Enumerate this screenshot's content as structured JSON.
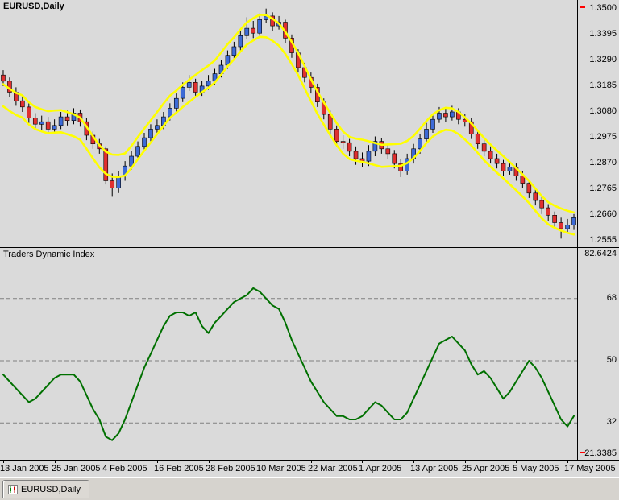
{
  "window": {
    "chart_label": "EURUSD,Daily",
    "indicator_label": "Traders Dynamic Index",
    "tab_label": "EURUSD,Daily"
  },
  "colors": {
    "background": "#d6d3ce",
    "chart_bg": "#dadada",
    "bull": "#3c6ad7",
    "bear": "#e03030",
    "band": "#ffff00",
    "tdi_line": "#007000",
    "level_line": "#808080",
    "marker": "#ff0000",
    "axis_text": "#000000"
  },
  "chart_data": [
    {
      "type": "candlestick",
      "title": "EURUSD,Daily",
      "ylim": [
        1.253,
        1.3535
      ],
      "y_ticks": [
        "1.3500",
        "1.3395",
        "1.3290",
        "1.3185",
        "1.3080",
        "1.2975",
        "1.2870",
        "1.2765",
        "1.2660",
        "1.2555"
      ],
      "x_ticks": [
        {
          "label": "13 Jan 2005",
          "bar": 0
        },
        {
          "label": "25 Jan 2005",
          "bar": 8
        },
        {
          "label": "4 Feb 2005",
          "bar": 16
        },
        {
          "label": "16 Feb 2005",
          "bar": 24
        },
        {
          "label": "28 Feb 2005",
          "bar": 32
        },
        {
          "label": "10 Mar 2005",
          "bar": 40
        },
        {
          "label": "22 Mar 2005",
          "bar": 48
        },
        {
          "label": "1 Apr 2005",
          "bar": 56
        },
        {
          "label": "13 Apr 2005",
          "bar": 64
        },
        {
          "label": "25 Apr 2005",
          "bar": 72
        },
        {
          "label": "5 May 2005",
          "bar": 80
        },
        {
          "label": "17 May 2005",
          "bar": 88
        }
      ],
      "band": {
        "period": 7,
        "offset": 0.0045
      },
      "candles": [
        [
          1.323,
          1.325,
          1.3185,
          1.3205
        ],
        [
          1.3205,
          1.322,
          1.314,
          1.316
        ],
        [
          1.316,
          1.318,
          1.3105,
          1.3125
        ],
        [
          1.3125,
          1.315,
          1.308,
          1.31
        ],
        [
          1.31,
          1.3115,
          1.3035,
          1.3055
        ],
        [
          1.3055,
          1.3075,
          1.301,
          1.303
        ],
        [
          1.303,
          1.3065,
          1.3005,
          1.304
        ],
        [
          1.304,
          1.306,
          1.299,
          1.301
        ],
        [
          1.301,
          1.305,
          1.2995,
          1.3025
        ],
        [
          1.3025,
          1.308,
          1.301,
          1.306
        ],
        [
          1.306,
          1.3085,
          1.3025,
          1.3045
        ],
        [
          1.3045,
          1.3095,
          1.303,
          1.3075
        ],
        [
          1.3075,
          1.309,
          1.302,
          1.304
        ],
        [
          1.304,
          1.3055,
          1.2965,
          1.2985
        ],
        [
          1.2985,
          1.3,
          1.293,
          1.295
        ],
        [
          1.295,
          1.297,
          1.291,
          1.293
        ],
        [
          1.293,
          1.294,
          1.2785,
          1.28
        ],
        [
          1.28,
          1.283,
          1.2735,
          1.277
        ],
        [
          1.277,
          1.284,
          1.275,
          1.282
        ],
        [
          1.282,
          1.288,
          1.28,
          1.286
        ],
        [
          1.286,
          1.292,
          1.2845,
          1.29
        ],
        [
          1.29,
          1.296,
          1.2885,
          1.294
        ],
        [
          1.294,
          1.2995,
          1.2925,
          1.2975
        ],
        [
          1.2975,
          1.303,
          1.296,
          1.301
        ],
        [
          1.301,
          1.305,
          1.2995,
          1.3025
        ],
        [
          1.3025,
          1.308,
          1.301,
          1.306
        ],
        [
          1.306,
          1.3115,
          1.3045,
          1.3095
        ],
        [
          1.3095,
          1.3155,
          1.308,
          1.3135
        ],
        [
          1.3135,
          1.32,
          1.312,
          1.318
        ],
        [
          1.318,
          1.323,
          1.3165,
          1.32
        ],
        [
          1.32,
          1.3215,
          1.314,
          1.316
        ],
        [
          1.316,
          1.3205,
          1.3145,
          1.3185
        ],
        [
          1.3185,
          1.323,
          1.317,
          1.3205
        ],
        [
          1.3205,
          1.3255,
          1.319,
          1.3235
        ],
        [
          1.3235,
          1.329,
          1.322,
          1.327
        ],
        [
          1.327,
          1.333,
          1.3255,
          1.331
        ],
        [
          1.331,
          1.3365,
          1.3295,
          1.3345
        ],
        [
          1.3345,
          1.3415,
          1.333,
          1.339
        ],
        [
          1.339,
          1.3465,
          1.3375,
          1.342
        ],
        [
          1.342,
          1.345,
          1.338,
          1.34
        ],
        [
          1.34,
          1.348,
          1.339,
          1.3455
        ],
        [
          1.3455,
          1.35,
          1.344,
          1.347
        ],
        [
          1.347,
          1.3485,
          1.341,
          1.343
        ],
        [
          1.343,
          1.347,
          1.3415,
          1.3445
        ],
        [
          1.3445,
          1.3455,
          1.336,
          1.338
        ],
        [
          1.338,
          1.3395,
          1.33,
          1.332
        ],
        [
          1.332,
          1.3335,
          1.324,
          1.326
        ],
        [
          1.326,
          1.328,
          1.32,
          1.322
        ],
        [
          1.322,
          1.324,
          1.3155,
          1.318
        ],
        [
          1.318,
          1.3195,
          1.31,
          1.312
        ],
        [
          1.312,
          1.3135,
          1.305,
          1.307
        ],
        [
          1.307,
          1.3085,
          1.299,
          1.301
        ],
        [
          1.301,
          1.3025,
          1.294,
          1.296
        ],
        [
          1.296,
          1.2985,
          1.293,
          1.2955
        ],
        [
          1.2955,
          1.297,
          1.29,
          1.292
        ],
        [
          1.292,
          1.294,
          1.2865,
          1.289
        ],
        [
          1.289,
          1.2915,
          1.2855,
          1.288
        ],
        [
          1.288,
          1.2945,
          1.286,
          1.292
        ],
        [
          1.292,
          1.298,
          1.29,
          1.296
        ],
        [
          1.296,
          1.2975,
          1.291,
          1.293
        ],
        [
          1.293,
          1.295,
          1.289,
          1.291
        ],
        [
          1.291,
          1.2925,
          1.285,
          1.287
        ],
        [
          1.287,
          1.289,
          1.2815,
          1.284
        ],
        [
          1.284,
          1.291,
          1.2825,
          1.289
        ],
        [
          1.289,
          1.295,
          1.287,
          1.293
        ],
        [
          1.293,
          1.299,
          1.291,
          1.297
        ],
        [
          1.297,
          1.3035,
          1.2955,
          1.301
        ],
        [
          1.301,
          1.307,
          1.2995,
          1.305
        ],
        [
          1.305,
          1.31,
          1.3035,
          1.3075
        ],
        [
          1.3075,
          1.3095,
          1.304,
          1.306
        ],
        [
          1.306,
          1.3105,
          1.3045,
          1.308
        ],
        [
          1.308,
          1.3095,
          1.303,
          1.305
        ],
        [
          1.305,
          1.307,
          1.302,
          1.304
        ],
        [
          1.304,
          1.3055,
          1.297,
          1.299
        ],
        [
          1.299,
          1.3005,
          1.293,
          1.295
        ],
        [
          1.295,
          1.2965,
          1.29,
          1.292
        ],
        [
          1.292,
          1.294,
          1.287,
          1.289
        ],
        [
          1.289,
          1.291,
          1.285,
          1.287
        ],
        [
          1.287,
          1.2885,
          1.282,
          1.284
        ],
        [
          1.284,
          1.2875,
          1.2825,
          1.2855
        ],
        [
          1.2855,
          1.287,
          1.28,
          1.282
        ],
        [
          1.282,
          1.284,
          1.277,
          1.279
        ],
        [
          1.279,
          1.2805,
          1.273,
          1.275
        ],
        [
          1.275,
          1.2765,
          1.27,
          1.272
        ],
        [
          1.272,
          1.2735,
          1.2665,
          1.269
        ],
        [
          1.269,
          1.2705,
          1.2635,
          1.266
        ],
        [
          1.266,
          1.2675,
          1.2605,
          1.263
        ],
        [
          1.263,
          1.265,
          1.2565,
          1.2605
        ],
        [
          1.2605,
          1.2645,
          1.2585,
          1.262
        ],
        [
          1.262,
          1.2665,
          1.26,
          1.265
        ]
      ]
    },
    {
      "type": "line",
      "title": "Traders Dynamic Index",
      "ylim": [
        21.3385,
        82.6424
      ],
      "levels": [
        68,
        50,
        32
      ],
      "y_ticks": [
        "82.6424",
        "68",
        "50",
        "32",
        "21.3385"
      ],
      "values": [
        46,
        44,
        42,
        40,
        38,
        39,
        41,
        43,
        45,
        46,
        46,
        46,
        44,
        40,
        36,
        33,
        28,
        27,
        29,
        33,
        38,
        43,
        48,
        52,
        56,
        60,
        63,
        64,
        64,
        63,
        64,
        60,
        58,
        61,
        63,
        65,
        67,
        68,
        69,
        71,
        70,
        68,
        66,
        65,
        61,
        56,
        52,
        48,
        44,
        41,
        38,
        36,
        34,
        34,
        33,
        33,
        34,
        36,
        38,
        37,
        35,
        33,
        33,
        35,
        39,
        43,
        47,
        51,
        55,
        56,
        57,
        55,
        53,
        49,
        46,
        47,
        45,
        42,
        39,
        41,
        44,
        47,
        50,
        48,
        45,
        41,
        37,
        33,
        31,
        34
      ]
    }
  ]
}
